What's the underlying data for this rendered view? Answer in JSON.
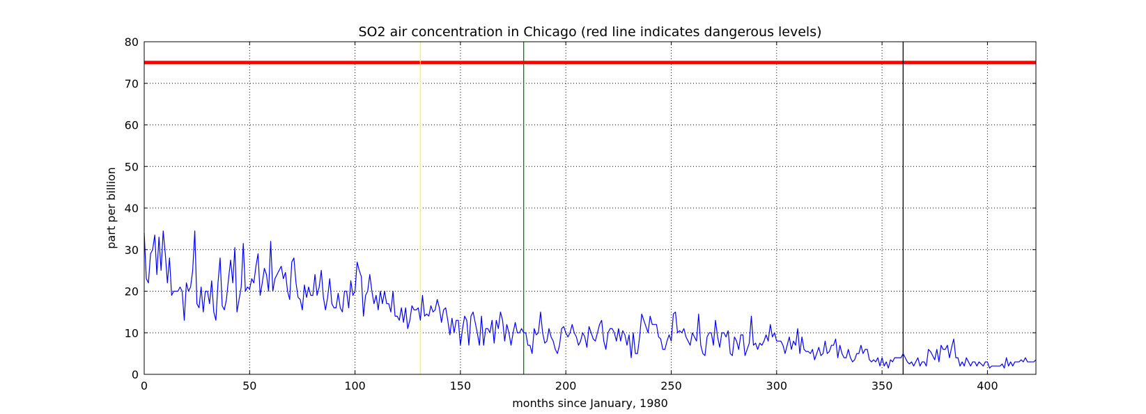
{
  "chart_data": {
    "type": "line",
    "title": "SO2 air concentration in Chicago (red line indicates dangerous levels)",
    "xlabel": "months since January, 1980",
    "ylabel": "part per billion",
    "xlim": [
      0,
      423
    ],
    "ylim": [
      0,
      80
    ],
    "x_ticks": [
      0,
      50,
      100,
      150,
      200,
      250,
      300,
      350,
      400
    ],
    "y_ticks": [
      0,
      10,
      20,
      30,
      40,
      50,
      60,
      70,
      80
    ],
    "grid": true,
    "colors": {
      "series": "#0000ff",
      "danger": "#ff0000",
      "marker_1": "#ffff00",
      "marker_2": "#008000",
      "marker_3": "#000000"
    },
    "reference_lines": [
      {
        "orientation": "horizontal",
        "value": 75,
        "color": "#ff0000"
      },
      {
        "orientation": "vertical",
        "value": 131,
        "color": "#ffff00"
      },
      {
        "orientation": "vertical",
        "value": 180,
        "color": "#008000"
      },
      {
        "orientation": "vertical",
        "value": 360,
        "color": "#000000"
      }
    ],
    "series": [
      {
        "start_x": 0,
        "values": [
          34,
          23,
          22,
          29,
          30,
          33.5,
          24,
          33,
          25,
          34.5,
          29,
          22,
          28,
          19,
          20,
          20,
          20,
          21,
          20,
          13,
          22,
          20,
          21,
          25,
          34.5,
          17,
          16,
          21,
          15,
          20,
          20,
          17,
          22.5,
          15,
          13,
          22,
          28,
          16.5,
          15.5,
          18,
          23,
          27.5,
          22,
          30.5,
          15,
          18,
          21,
          31.5,
          20,
          21,
          20.5,
          23,
          22,
          26,
          29,
          19,
          22,
          25.5,
          24,
          20,
          32,
          20,
          23,
          24,
          25,
          26,
          23,
          24.5,
          20,
          18,
          27,
          28,
          22,
          18.5,
          18,
          15.5,
          21.5,
          18.5,
          21,
          19,
          19,
          24,
          19,
          21,
          25,
          18.5,
          15.5,
          18.5,
          23,
          17,
          16,
          16,
          19.5,
          16,
          15,
          20,
          20,
          16,
          22.5,
          19,
          20,
          27,
          25,
          23.5,
          14,
          19,
          20,
          24,
          20,
          17,
          19,
          15.5,
          20,
          17,
          20,
          17,
          17,
          15,
          20,
          14,
          14,
          13,
          16,
          12.5,
          16,
          11,
          13,
          16.5,
          15.5,
          15.5,
          16,
          13,
          19,
          14,
          14.5,
          14,
          16.5,
          15,
          15.5,
          18,
          16,
          12.5,
          15.5,
          16,
          13,
          9.5,
          13.5,
          10,
          13,
          13,
          7,
          11,
          14,
          13,
          7,
          14,
          15,
          12.5,
          10,
          7,
          14,
          7,
          11,
          11,
          10,
          13,
          7.5,
          13,
          11,
          15,
          13,
          8,
          12,
          10,
          7,
          10,
          12.5,
          10,
          10,
          11,
          10,
          10,
          7,
          7,
          5,
          11,
          9.5,
          10,
          15,
          10,
          7.5,
          8,
          11,
          9,
          8,
          6,
          5,
          7,
          11,
          11.5,
          10,
          9,
          10,
          12,
          10,
          9,
          7,
          8,
          10,
          9,
          6.5,
          11.5,
          10,
          8.5,
          8,
          10,
          12,
          13,
          8,
          6,
          10,
          11,
          11,
          10,
          8,
          11,
          8,
          10.5,
          9.5,
          7,
          9.5,
          4,
          10,
          5,
          5,
          9,
          14.5,
          13,
          11.5,
          10,
          14,
          12,
          12,
          12,
          9,
          8.5,
          6,
          6,
          8,
          9.5,
          8,
          14.5,
          15,
          10,
          10.5,
          10,
          11,
          9,
          8,
          7,
          10,
          9,
          8,
          14.5,
          7,
          5,
          4.5,
          9,
          10,
          10,
          7,
          13,
          9,
          6.5,
          10,
          10,
          9,
          10.5,
          5,
          4.5,
          9,
          8,
          6,
          9.5,
          9.5,
          4.5,
          6,
          7.5,
          14,
          7,
          7.5,
          6,
          7.5,
          7,
          8,
          9.5,
          8,
          12,
          9,
          10,
          8,
          8,
          8,
          7,
          5,
          7,
          9,
          6,
          8,
          7,
          11,
          5,
          9,
          6,
          5.5,
          5.5,
          5,
          6,
          3.5,
          5,
          6.5,
          4.5,
          5,
          8,
          5,
          5.5,
          7,
          7,
          8.5,
          4,
          7,
          5,
          4,
          4,
          6,
          4,
          3,
          3.5,
          5,
          5,
          7,
          5,
          6,
          6,
          3.5,
          3,
          3.5,
          3,
          4,
          2,
          4,
          2,
          3,
          1.5,
          3.5,
          3,
          4,
          4,
          4,
          4,
          5,
          4,
          3,
          2.5,
          3,
          2,
          3,
          4,
          2,
          3,
          3,
          2,
          6,
          5.5,
          4.5,
          3.5,
          6,
          3,
          7,
          6,
          6,
          7,
          4,
          6.5,
          8.5,
          4,
          4,
          2,
          3,
          2,
          4,
          3,
          2,
          3,
          3,
          2,
          3,
          2.5,
          2,
          3,
          3,
          1.5,
          2,
          2,
          2,
          2,
          2,
          2.5,
          1.5,
          4,
          2,
          3,
          2,
          3,
          3,
          3,
          3.5,
          3,
          4,
          3,
          3,
          3,
          3,
          3.5
        ]
      }
    ]
  }
}
